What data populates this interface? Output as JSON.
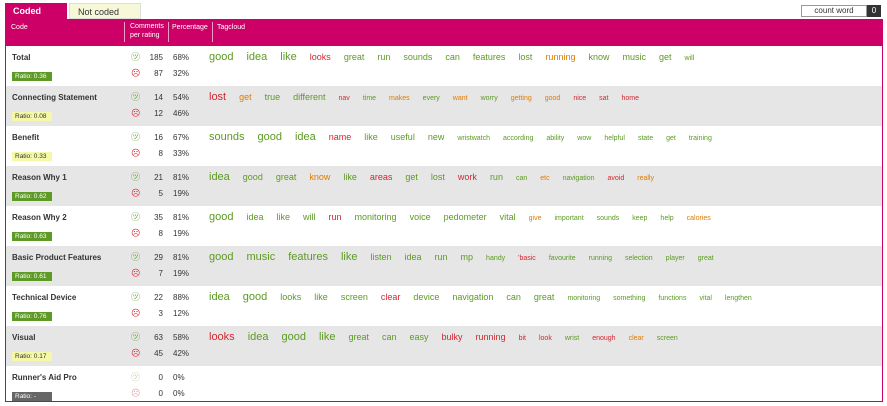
{
  "tabs": [
    {
      "label": "Coded areas",
      "active": true
    },
    {
      "label": "Not coded areas",
      "active": false
    }
  ],
  "count_word": {
    "label": "count word",
    "value": "0"
  },
  "headers": {
    "code": "Code",
    "comments_per_rating_1": "Comments",
    "comments_per_rating_2": "per rating",
    "percentage": "Percentage",
    "tagcloud": "Tagcloud"
  },
  "colors": {
    "accent": "#cc0066",
    "positive": "#5c9a22",
    "negative": "#d02830",
    "neutral": "#e07b00"
  },
  "rows": [
    {
      "name": "Total",
      "ratio": "Ratio: 0.36",
      "ratio_style": "green",
      "pos": "185",
      "pos_pct": "68%",
      "neg": "87",
      "neg_pct": "32%",
      "words": [
        [
          "good",
          "g",
          1
        ],
        [
          "idea",
          "g",
          1
        ],
        [
          "like",
          "g",
          1
        ],
        [
          "looks",
          "r",
          2
        ],
        [
          "great",
          "g",
          2
        ],
        [
          "run",
          "g",
          2
        ],
        [
          "sounds",
          "g",
          2
        ],
        [
          "can",
          "g",
          2
        ],
        [
          "features",
          "g",
          2
        ],
        [
          "lost",
          "g",
          2
        ],
        [
          "running",
          "o",
          2
        ],
        [
          "know",
          "g",
          2
        ],
        [
          "music",
          "g",
          2
        ],
        [
          "get",
          "g",
          2
        ],
        [
          "will",
          "g",
          4
        ]
      ]
    },
    {
      "name": "Connecting Statement",
      "ratio": "Ratio: 0.08",
      "ratio_style": "yellow",
      "pos": "14",
      "pos_pct": "54%",
      "neg": "12",
      "neg_pct": "46%",
      "words": [
        [
          "lost",
          "r",
          1
        ],
        [
          "get",
          "o",
          2
        ],
        [
          "true",
          "g",
          2
        ],
        [
          "different",
          "g",
          2
        ],
        [
          "nav",
          "r",
          4
        ],
        [
          "time",
          "g",
          4
        ],
        [
          "makes",
          "o",
          4
        ],
        [
          "every",
          "g",
          4
        ],
        [
          "want",
          "o",
          4
        ],
        [
          "worry",
          "g",
          4
        ],
        [
          "getting",
          "o",
          4
        ],
        [
          "good",
          "o",
          4
        ],
        [
          "nice",
          "r",
          4
        ],
        [
          "sat",
          "r",
          4
        ],
        [
          "home",
          "r",
          4
        ]
      ]
    },
    {
      "name": "Benefit",
      "ratio": "Ratio: 0.33",
      "ratio_style": "yellow",
      "pos": "16",
      "pos_pct": "67%",
      "neg": "8",
      "neg_pct": "33%",
      "words": [
        [
          "sounds",
          "g",
          1
        ],
        [
          "good",
          "g",
          1
        ],
        [
          "idea",
          "g",
          1
        ],
        [
          "name",
          "r",
          2
        ],
        [
          "like",
          "g",
          2
        ],
        [
          "useful",
          "g",
          2
        ],
        [
          "new",
          "g",
          2
        ],
        [
          "wristwatch",
          "g",
          4
        ],
        [
          "according",
          "g",
          4
        ],
        [
          "ability",
          "g",
          4
        ],
        [
          "wow",
          "g",
          4
        ],
        [
          "helpful",
          "g",
          4
        ],
        [
          "state",
          "g",
          4
        ],
        [
          "get",
          "g",
          4
        ],
        [
          "training",
          "g",
          4
        ]
      ]
    },
    {
      "name": "Reason Why 1",
      "ratio": "Ratio: 0.62",
      "ratio_style": "green",
      "pos": "21",
      "pos_pct": "81%",
      "neg": "5",
      "neg_pct": "19%",
      "words": [
        [
          "idea",
          "g",
          1
        ],
        [
          "good",
          "g",
          2
        ],
        [
          "great",
          "g",
          2
        ],
        [
          "know",
          "o",
          2
        ],
        [
          "like",
          "g",
          2
        ],
        [
          "areas",
          "r",
          2
        ],
        [
          "get",
          "g",
          2
        ],
        [
          "lost",
          "g",
          2
        ],
        [
          "work",
          "r",
          2
        ],
        [
          "run",
          "g",
          2
        ],
        [
          "can",
          "g",
          4
        ],
        [
          "etc",
          "o",
          4
        ],
        [
          "navigation",
          "g",
          4
        ],
        [
          "avoid",
          "r",
          4
        ],
        [
          "really",
          "o",
          4
        ]
      ]
    },
    {
      "name": "Reason Why 2",
      "ratio": "Ratio: 0.63",
      "ratio_style": "green",
      "pos": "35",
      "pos_pct": "81%",
      "neg": "8",
      "neg_pct": "19%",
      "words": [
        [
          "good",
          "g",
          1
        ],
        [
          "idea",
          "g",
          2
        ],
        [
          "like",
          "g",
          2
        ],
        [
          "will",
          "g",
          2
        ],
        [
          "run",
          "r",
          2
        ],
        [
          "monitoring",
          "g",
          2
        ],
        [
          "voice",
          "g",
          2
        ],
        [
          "pedometer",
          "g",
          2
        ],
        [
          "vital",
          "g",
          2
        ],
        [
          "give",
          "o",
          4
        ],
        [
          "important",
          "g",
          4
        ],
        [
          "sounds",
          "g",
          4
        ],
        [
          "keep",
          "g",
          4
        ],
        [
          "help",
          "g",
          4
        ],
        [
          "calories",
          "o",
          4
        ]
      ]
    },
    {
      "name": "Basic Product Features",
      "ratio": "Ratio: 0.61",
      "ratio_style": "green",
      "pos": "29",
      "pos_pct": "81%",
      "neg": "7",
      "neg_pct": "19%",
      "words": [
        [
          "good",
          "g",
          1
        ],
        [
          "music",
          "g",
          1
        ],
        [
          "features",
          "g",
          1
        ],
        [
          "like",
          "g",
          1
        ],
        [
          "listen",
          "g",
          2
        ],
        [
          "idea",
          "g",
          2
        ],
        [
          "run",
          "g",
          2
        ],
        [
          "mp",
          "g",
          2
        ],
        [
          "handy",
          "g",
          4
        ],
        [
          "'basic",
          "r",
          4
        ],
        [
          "favourite",
          "g",
          4
        ],
        [
          "running",
          "g",
          4
        ],
        [
          "selection",
          "g",
          4
        ],
        [
          "player",
          "g",
          4
        ],
        [
          "great",
          "g",
          4
        ]
      ]
    },
    {
      "name": "Technical Device",
      "ratio": "Ratio: 0.76",
      "ratio_style": "green",
      "pos": "22",
      "pos_pct": "88%",
      "neg": "3",
      "neg_pct": "12%",
      "words": [
        [
          "idea",
          "g",
          1
        ],
        [
          "good",
          "g",
          1
        ],
        [
          "looks",
          "g",
          2
        ],
        [
          "like",
          "g",
          2
        ],
        [
          "screen",
          "g",
          2
        ],
        [
          "clear",
          "r",
          2
        ],
        [
          "device",
          "g",
          2
        ],
        [
          "navigation",
          "g",
          2
        ],
        [
          "can",
          "g",
          2
        ],
        [
          "great",
          "g",
          2
        ],
        [
          "monitoring",
          "g",
          4
        ],
        [
          "something",
          "g",
          4
        ],
        [
          "functions",
          "g",
          4
        ],
        [
          "vital",
          "g",
          4
        ],
        [
          "lengthen",
          "g",
          4
        ]
      ]
    },
    {
      "name": "Visual",
      "ratio": "Ratio: 0.17",
      "ratio_style": "yellow",
      "pos": "63",
      "pos_pct": "58%",
      "neg": "45",
      "neg_pct": "42%",
      "words": [
        [
          "looks",
          "r",
          1
        ],
        [
          "idea",
          "g",
          1
        ],
        [
          "good",
          "g",
          1
        ],
        [
          "like",
          "g",
          1
        ],
        [
          "great",
          "g",
          2
        ],
        [
          "can",
          "g",
          2
        ],
        [
          "easy",
          "g",
          2
        ],
        [
          "bulky",
          "r",
          2
        ],
        [
          "running",
          "r",
          2
        ],
        [
          "bit",
          "r",
          4
        ],
        [
          "look",
          "r",
          4
        ],
        [
          "wrist",
          "g",
          4
        ],
        [
          "enough",
          "r",
          4
        ],
        [
          "clear",
          "o",
          4
        ],
        [
          "screen",
          "g",
          4
        ]
      ]
    },
    {
      "name": "Runner's Aid Pro",
      "ratio": "Ratio: -",
      "ratio_style": "gray",
      "pos": "0",
      "pos_pct": "0%",
      "neg": "0",
      "neg_pct": "0%",
      "dim": true,
      "words": []
    }
  ]
}
